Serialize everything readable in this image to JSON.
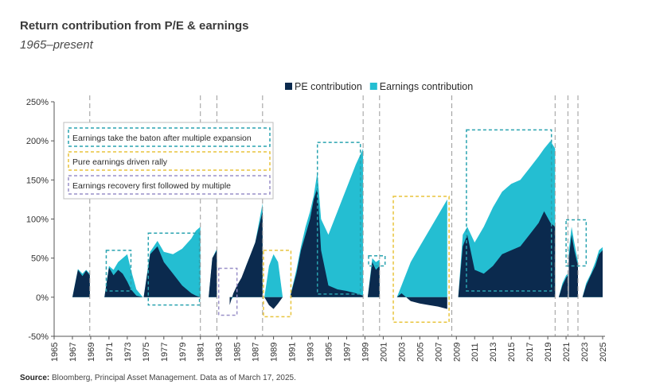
{
  "title": "Return contribution from P/E & earnings",
  "subtitle": "1965–present",
  "source_label": "Source:",
  "source_text": " Bloomberg, Principal Asset Management. Data as of March 17, 2025.",
  "colors": {
    "pe": "#0b2a4e",
    "earnings": "#24bed2",
    "teal_box": "#2aa3b0",
    "yellow_box": "#e8c43c",
    "purple_box": "#9a90c8",
    "grid": "#9a9a9a"
  },
  "chart_data": {
    "type": "area",
    "x_unit": "year",
    "y_unit": "%",
    "xlim": [
      1965,
      2025
    ],
    "ylim": [
      -50,
      250
    ],
    "y_ticks": [
      -50,
      0,
      50,
      100,
      150,
      200,
      250
    ],
    "y_tick_labels": [
      "-50%",
      "0%",
      "50%",
      "100%",
      "150%",
      "200%",
      "250%"
    ],
    "x_ticks": [
      1965,
      1967,
      1969,
      1971,
      1973,
      1975,
      1977,
      1979,
      1981,
      1983,
      1985,
      1987,
      1989,
      1991,
      1993,
      1995,
      1997,
      1999,
      2001,
      2003,
      2005,
      2007,
      2009,
      2011,
      2013,
      2015,
      2017,
      2019,
      2021,
      2023,
      2025
    ],
    "grid": false,
    "legend_position": "top-right",
    "legend": [
      {
        "label": "PE contribution",
        "color": "#0b2a4e"
      },
      {
        "label": "Earnings contribution",
        "color": "#24bed2"
      }
    ],
    "cycle_boundaries": [
      1968.9,
      1981.0,
      1982.8,
      1987.8,
      1998.8,
      2000.6,
      2008.5,
      2019.8,
      2021.2,
      2022.3
    ],
    "segments": [
      {
        "label": "PE contribution",
        "series": "pe",
        "x": [
          1967.0,
          1967.6,
          1968.1,
          1968.5,
          1968.9
        ],
        "y": [
          0,
          35,
          27,
          34,
          28
        ]
      },
      {
        "label": "Earnings contribution",
        "series": "earnings",
        "x": [
          1967.0,
          1967.6,
          1968.1,
          1968.5,
          1968.9
        ],
        "y": [
          0,
          36,
          30,
          35,
          30
        ]
      },
      {
        "label": "PE contribution",
        "series": "pe",
        "x": [
          1970.5,
          1971.0,
          1971.5,
          1972.0,
          1972.5,
          1973.0,
          1973.4,
          1974.0,
          1974.7
        ],
        "y": [
          0,
          38,
          28,
          35,
          30,
          20,
          10,
          2,
          0
        ]
      },
      {
        "label": "Earnings contribution",
        "series": "earnings",
        "x": [
          1970.5,
          1971.0,
          1971.5,
          1972.0,
          1972.5,
          1973.0,
          1973.4,
          1974.0,
          1974.7
        ],
        "y": [
          0,
          40,
          35,
          45,
          50,
          55,
          35,
          10,
          0
        ]
      },
      {
        "label": "PE contribution",
        "series": "pe",
        "x": [
          1974.8,
          1975.5,
          1976.3,
          1977.0,
          1978.0,
          1979.0,
          1980.0,
          1980.5,
          1981.0
        ],
        "y": [
          0,
          55,
          65,
          45,
          30,
          15,
          5,
          2,
          0
        ]
      },
      {
        "label": "Earnings contribution",
        "series": "earnings",
        "x": [
          1974.8,
          1975.5,
          1976.3,
          1977.0,
          1978.0,
          1979.0,
          1980.0,
          1980.5,
          1981.0
        ],
        "y": [
          0,
          58,
          72,
          58,
          55,
          62,
          75,
          85,
          90
        ]
      },
      {
        "label": "PE contribution",
        "series": "pe",
        "x": [
          1981.9,
          1982.3,
          1982.8
        ],
        "y": [
          0,
          50,
          60
        ]
      },
      {
        "label": "Earnings contribution",
        "series": "earnings",
        "x": [
          1981.9,
          1982.3,
          1982.8
        ],
        "y": [
          0,
          50,
          62
        ]
      },
      {
        "label": "PE contribution",
        "series": "pe",
        "x": [
          1984.2,
          1984.6,
          1985.0,
          1985.5,
          1986.0,
          1986.5,
          1987.0,
          1987.4,
          1987.8
        ],
        "y": [
          -10,
          5,
          15,
          25,
          40,
          55,
          70,
          90,
          110
        ]
      },
      {
        "label": "Earnings contribution",
        "series": "earnings",
        "x": [
          1984.2,
          1984.6,
          1985.0,
          1985.5,
          1986.0,
          1986.5,
          1987.0,
          1987.4,
          1987.8
        ],
        "y": [
          -5,
          0,
          10,
          20,
          40,
          55,
          70,
          95,
          120
        ]
      },
      {
        "label": "PE contribution",
        "series": "pe",
        "x": [
          1988.0,
          1988.5,
          1989.0,
          1989.5,
          1990.0
        ],
        "y": [
          0,
          -10,
          -15,
          -8,
          0
        ]
      },
      {
        "label": "Earnings contribution",
        "series": "earnings",
        "x": [
          1988.0,
          1988.5,
          1989.0,
          1989.5,
          1990.0
        ],
        "y": [
          0,
          40,
          55,
          45,
          0
        ]
      },
      {
        "label": "PE contribution",
        "series": "pe",
        "x": [
          1990.8,
          1991.5,
          1992.0,
          1992.5,
          1993.0,
          1993.4,
          1993.8,
          1994.2,
          1995.0,
          1996.0,
          1997.0,
          1998.0,
          1998.8
        ],
        "y": [
          0,
          30,
          60,
          80,
          100,
          125,
          140,
          60,
          15,
          10,
          8,
          5,
          2
        ]
      },
      {
        "label": "Earnings contribution",
        "series": "earnings",
        "x": [
          1990.8,
          1991.5,
          1992.0,
          1992.5,
          1993.0,
          1993.4,
          1993.8,
          1994.2,
          1995.0,
          1996.0,
          1997.0,
          1998.0,
          1998.8
        ],
        "y": [
          0,
          35,
          65,
          90,
          110,
          130,
          160,
          100,
          80,
          110,
          140,
          170,
          190
        ]
      },
      {
        "label": "PE contribution",
        "series": "pe",
        "x": [
          1999.3,
          1999.8,
          2000.2,
          2000.6
        ],
        "y": [
          0,
          45,
          35,
          40
        ]
      },
      {
        "label": "Earnings contribution",
        "series": "earnings",
        "x": [
          1999.3,
          1999.8,
          2000.2,
          2000.6
        ],
        "y": [
          0,
          50,
          45,
          48
        ]
      },
      {
        "label": "PE contribution",
        "series": "pe",
        "x": [
          2002.5,
          2003.0,
          2004.0,
          2005.0,
          2006.0,
          2007.0,
          2008.0
        ],
        "y": [
          0,
          5,
          -5,
          -8,
          -10,
          -12,
          -15
        ]
      },
      {
        "label": "Earnings contribution",
        "series": "earnings",
        "x": [
          2002.5,
          2003.0,
          2004.0,
          2005.0,
          2006.0,
          2007.0,
          2008.0
        ],
        "y": [
          0,
          15,
          45,
          65,
          85,
          105,
          125
        ]
      },
      {
        "label": "PE contribution",
        "series": "pe",
        "x": [
          2009.2,
          2009.7,
          2010.2,
          2011.0,
          2012.0,
          2013.0,
          2014.0,
          2015.0,
          2016.0,
          2017.0,
          2018.0,
          2018.6,
          2019.3,
          2019.8
        ],
        "y": [
          0,
          65,
          80,
          35,
          30,
          40,
          55,
          60,
          65,
          80,
          95,
          110,
          95,
          90
        ]
      },
      {
        "label": "Earnings contribution",
        "series": "earnings",
        "x": [
          2009.2,
          2009.7,
          2010.2,
          2011.0,
          2012.0,
          2013.0,
          2014.0,
          2015.0,
          2016.0,
          2017.0,
          2018.0,
          2018.6,
          2019.3,
          2019.8
        ],
        "y": [
          0,
          80,
          90,
          70,
          90,
          115,
          135,
          145,
          150,
          165,
          180,
          190,
          200,
          190
        ]
      },
      {
        "label": "PE contribution",
        "series": "pe",
        "x": [
          2020.2,
          2020.6,
          2021.0,
          2021.2
        ],
        "y": [
          0,
          15,
          25,
          28
        ]
      },
      {
        "label": "Earnings contribution",
        "series": "earnings",
        "x": [
          2020.2,
          2020.6,
          2021.0,
          2021.2
        ],
        "y": [
          0,
          18,
          28,
          30
        ]
      },
      {
        "label": "PE contribution",
        "series": "pe",
        "x": [
          2021.3,
          2021.6,
          2021.9,
          2022.3
        ],
        "y": [
          50,
          80,
          60,
          40
        ]
      },
      {
        "label": "Earnings contribution",
        "series": "earnings",
        "x": [
          2021.3,
          2021.6,
          2021.9,
          2022.3
        ],
        "y": [
          60,
          90,
          70,
          45
        ]
      },
      {
        "label": "PE contribution",
        "series": "pe",
        "x": [
          2022.8,
          2023.2,
          2023.7,
          2024.2,
          2024.6,
          2025.0
        ],
        "y": [
          0,
          15,
          28,
          40,
          55,
          60
        ]
      },
      {
        "label": "Earnings contribution",
        "series": "earnings",
        "x": [
          2022.8,
          2023.2,
          2023.7,
          2024.2,
          2024.6,
          2025.0
        ],
        "y": [
          0,
          18,
          30,
          45,
          60,
          64
        ]
      }
    ],
    "highlight_boxes": [
      {
        "kind": "teal",
        "x": [
          1970.7,
          1973.4
        ],
        "y": [
          8,
          60
        ]
      },
      {
        "kind": "teal",
        "x": [
          1975.3,
          1980.9
        ],
        "y": [
          -10,
          82
        ]
      },
      {
        "kind": "purple",
        "x": [
          1983.0,
          1985.0
        ],
        "y": [
          -23,
          37
        ]
      },
      {
        "kind": "yellow",
        "x": [
          1987.9,
          1990.9
        ],
        "y": [
          -25,
          60
        ]
      },
      {
        "kind": "teal",
        "x": [
          1993.8,
          1998.5
        ],
        "y": [
          4,
          198
        ]
      },
      {
        "kind": "teal",
        "x": [
          1999.4,
          2001.2
        ],
        "y": [
          40,
          53
        ]
      },
      {
        "kind": "yellow",
        "x": [
          2002.1,
          2008.2
        ],
        "y": [
          -32,
          129
        ]
      },
      {
        "kind": "teal",
        "x": [
          2010.1,
          2019.4
        ],
        "y": [
          8,
          214
        ]
      },
      {
        "kind": "teal",
        "x": [
          2021.0,
          2023.2
        ],
        "y": [
          40,
          99
        ]
      }
    ],
    "annotation_legend": [
      {
        "kind": "teal",
        "label": "Earnings take the baton after multiple expansion"
      },
      {
        "kind": "yellow",
        "label": "Pure earnings driven rally"
      },
      {
        "kind": "purple",
        "label": "Earnings recovery first followed by multiple"
      }
    ]
  }
}
